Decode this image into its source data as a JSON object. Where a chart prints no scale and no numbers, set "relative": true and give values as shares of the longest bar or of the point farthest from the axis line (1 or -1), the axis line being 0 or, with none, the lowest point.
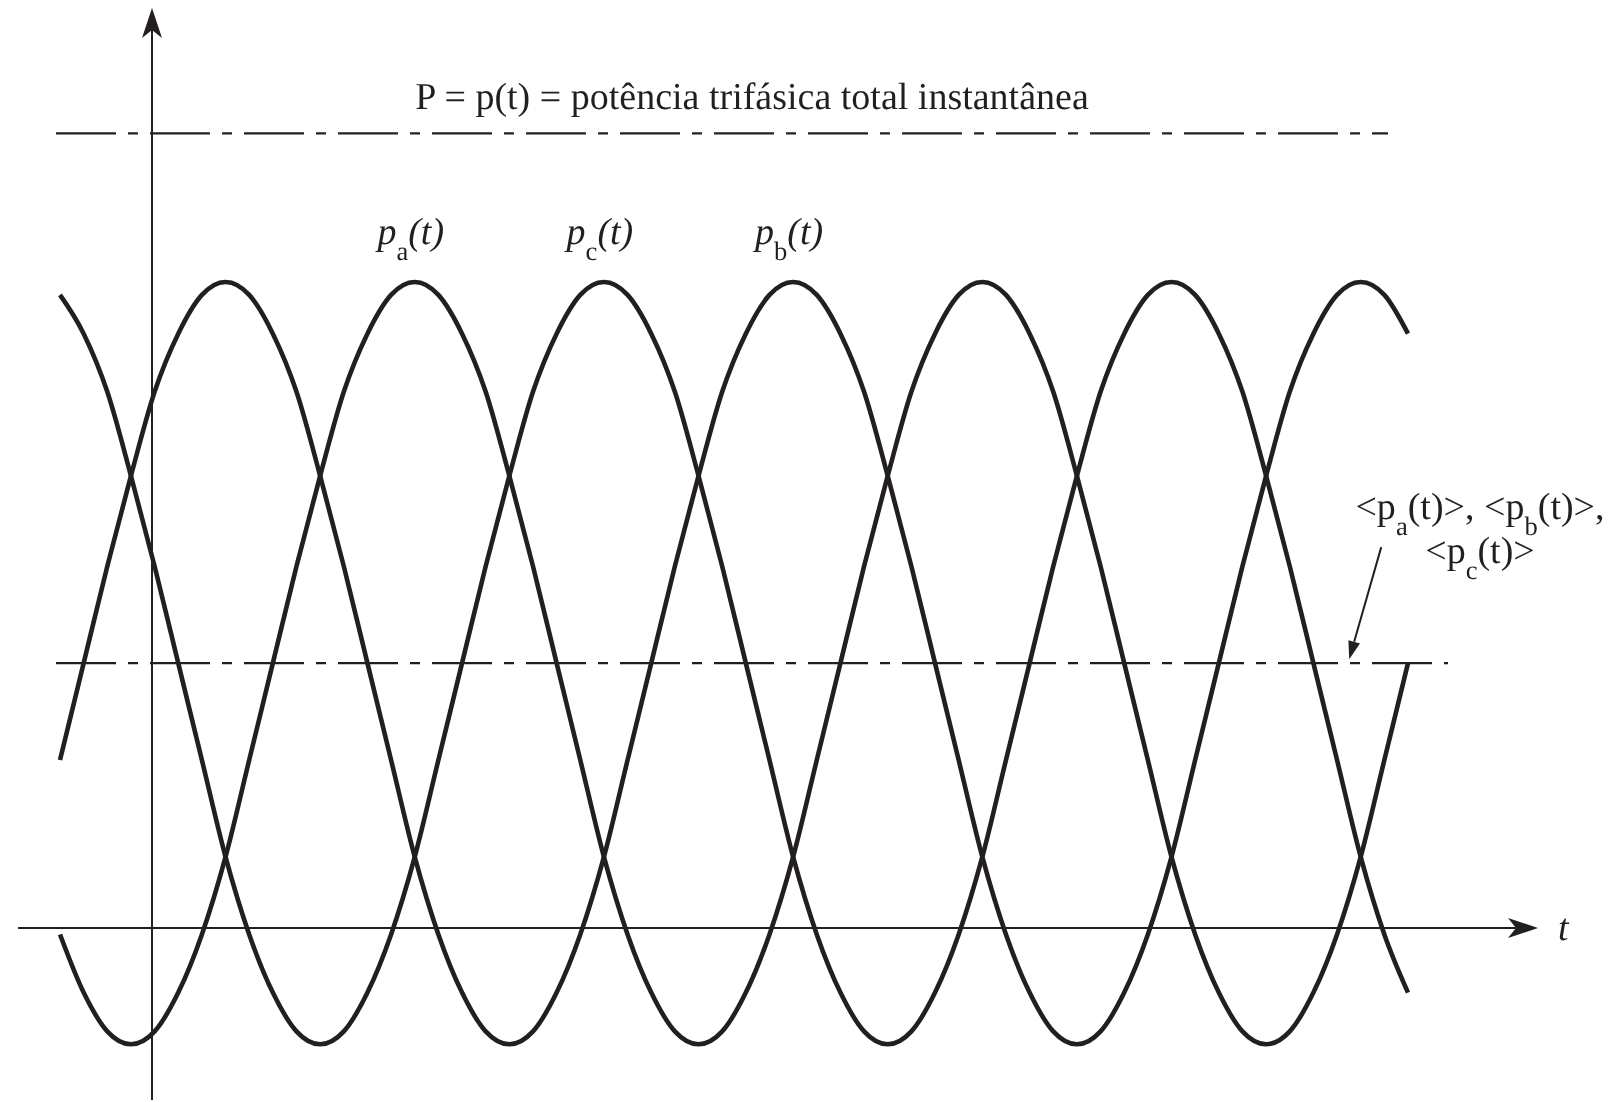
{
  "chart_data": {
    "type": "line",
    "relative": true,
    "xlabel": "t",
    "categories": [
      null,
      null,
      null,
      null,
      null,
      null,
      null,
      null,
      null,
      null,
      null,
      null,
      null,
      null,
      null,
      null,
      null,
      null,
      null,
      null,
      null,
      null,
      null,
      null,
      null,
      null,
      null,
      null,
      null,
      null,
      null,
      null,
      null,
      null,
      null,
      null,
      null,
      null,
      null,
      null,
      null,
      null,
      null,
      null,
      null,
      null,
      null,
      null,
      null,
      null,
      null,
      null,
      null,
      null,
      null,
      null,
      null,
      null
    ],
    "series": [
      {
        "name": "p$_{a}$(t)",
        "color": "#231f20",
        "values": [
          -0.01,
          -0.1,
          -0.16,
          -0.18,
          -0.16,
          -0.1,
          -0.01,
          0.11,
          0.26,
          0.41,
          0.56,
          0.7,
          0.83,
          0.92,
          0.98,
          1.0,
          0.98,
          0.92,
          0.83,
          0.7,
          0.56,
          0.41,
          0.26,
          0.11,
          -0.01,
          -0.1,
          -0.16,
          -0.18,
          -0.16,
          -0.1,
          -0.01,
          0.11,
          0.26,
          0.41,
          0.56,
          0.7,
          0.83,
          0.92,
          0.98,
          1.0,
          0.98,
          0.92,
          0.83,
          0.7,
          0.56,
          0.41,
          0.26,
          0.11,
          -0.01,
          -0.1,
          -0.16,
          -0.18,
          -0.16,
          -0.1,
          -0.01,
          0.11,
          0.26,
          0.41
        ]
      },
      {
        "name": "p$_{b}$(t)",
        "color": "#231f20",
        "values": [
          0.26,
          0.41,
          0.56,
          0.7,
          0.83,
          0.92,
          0.98,
          1.0,
          0.98,
          0.92,
          0.83,
          0.7,
          0.56,
          0.41,
          0.26,
          0.11,
          -0.01,
          -0.1,
          -0.16,
          -0.18,
          -0.16,
          -0.1,
          -0.01,
          0.11,
          0.26,
          0.41,
          0.56,
          0.7,
          0.83,
          0.92,
          0.98,
          1.0,
          0.98,
          0.92,
          0.83,
          0.7,
          0.56,
          0.41,
          0.26,
          0.11,
          -0.01,
          -0.1,
          -0.16,
          -0.18,
          -0.16,
          -0.1,
          -0.01,
          0.11,
          0.26,
          0.41,
          0.56,
          0.7,
          0.83,
          0.92,
          0.98,
          1.0,
          0.98,
          0.92
        ]
      },
      {
        "name": "p$_{c}$(t)",
        "color": "#231f20",
        "values": [
          0.98,
          0.92,
          0.83,
          0.7,
          0.56,
          0.41,
          0.26,
          0.11,
          -0.01,
          -0.1,
          -0.16,
          -0.18,
          -0.16,
          -0.1,
          -0.01,
          0.11,
          0.26,
          0.41,
          0.56,
          0.7,
          0.83,
          0.92,
          0.98,
          1.0,
          0.98,
          0.92,
          0.83,
          0.7,
          0.56,
          0.41,
          0.26,
          0.11,
          -0.01,
          -0.1,
          -0.16,
          -0.18,
          -0.16,
          -0.1,
          -0.01,
          0.11,
          0.26,
          0.41,
          0.56,
          0.7,
          0.83,
          0.92,
          0.98,
          1.0,
          0.98,
          0.92,
          0.83,
          0.7,
          0.56,
          0.41,
          0.26,
          0.11,
          -0.01,
          -0.1
        ]
      }
    ],
    "ref_lines": [
      {
        "axis": "y",
        "value": 1.23,
        "label": "P = p(t) = potência trifásica total instantânea",
        "color": "#231f20",
        "line_style": "dashed"
      },
      {
        "axis": "y",
        "value": 0.41,
        "label": "<p$_{a}$(t)>, <p$_{b}$(t)>, <p$_{c}$(t)>",
        "color": "#231f20",
        "line_style": "dashed"
      }
    ]
  }
}
